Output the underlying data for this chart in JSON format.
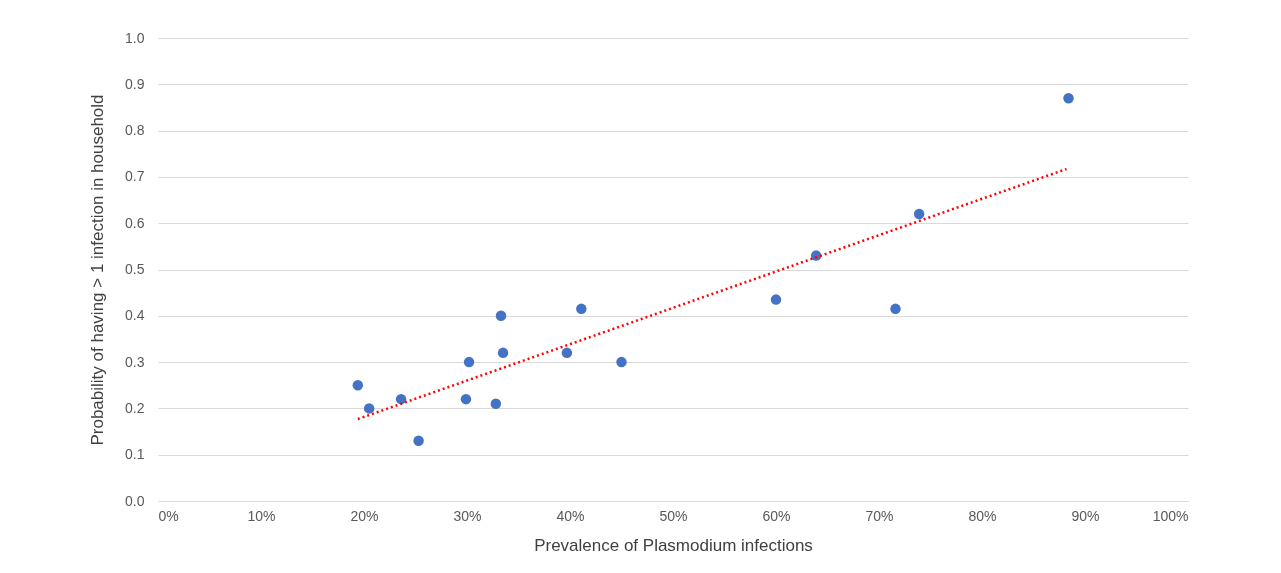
{
  "chart_data": {
    "type": "scatter",
    "xlabel": "Prevalence of Plasmodium infections",
    "ylabel": "Probability of having > 1 infection in household",
    "x": [
      19.4,
      20.5,
      23.6,
      25.3,
      29.9,
      30.2,
      32.8,
      33.3,
      33.5,
      39.7,
      41.1,
      45.0,
      60.0,
      63.9,
      71.6,
      73.9,
      88.4
    ],
    "series": [
      {
        "color": "#4472c4",
        "marker": "circle",
        "values": [
          0.25,
          0.2,
          0.22,
          0.13,
          0.22,
          0.3,
          0.21,
          0.4,
          0.32,
          0.32,
          0.415,
          0.3,
          0.435,
          0.53,
          0.415,
          0.62,
          0.87
        ]
      },
      {
        "type": "line",
        "color": "#ff0000",
        "line_style": "dotted",
        "x": [
          19.4,
          88.2
        ],
        "values": [
          0.177,
          0.717
        ]
      }
    ],
    "xlim": [
      0,
      100
    ],
    "xticks": [
      {
        "value": 0,
        "label": "0%"
      },
      {
        "value": 10,
        "label": "10%"
      },
      {
        "value": 20,
        "label": "20%"
      },
      {
        "value": 30,
        "label": "30%"
      },
      {
        "value": 40,
        "label": "40%"
      },
      {
        "value": 50,
        "label": "50%"
      },
      {
        "value": 60,
        "label": "60%"
      },
      {
        "value": 70,
        "label": "70%"
      },
      {
        "value": 80,
        "label": "80%"
      },
      {
        "value": 90,
        "label": "90%"
      },
      {
        "value": 100,
        "label": "100%"
      }
    ],
    "ylim": [
      0,
      1
    ],
    "yticks": [
      {
        "value": 0,
        "label": "0.0"
      },
      {
        "value": 0.1,
        "label": "0.1"
      },
      {
        "value": 0.2,
        "label": "0.2"
      },
      {
        "value": 0.3,
        "label": "0.3"
      },
      {
        "value": 0.4,
        "label": "0.4"
      },
      {
        "value": 0.5,
        "label": "0.5"
      },
      {
        "value": 0.6,
        "label": "0.6"
      },
      {
        "value": 0.7,
        "label": "0.7"
      },
      {
        "value": 0.8,
        "label": "0.8"
      },
      {
        "value": 0.9,
        "label": "0.9"
      },
      {
        "value": 1,
        "label": "1.0"
      }
    ],
    "grid": "y"
  }
}
